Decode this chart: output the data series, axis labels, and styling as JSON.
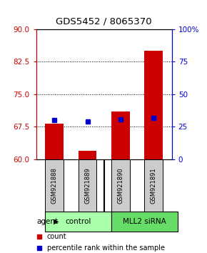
{
  "title": "GDS5452 / 8065370",
  "categories": [
    "GSM921888",
    "GSM921889",
    "GSM921890",
    "GSM921891"
  ],
  "bar_values": [
    68.2,
    62.0,
    71.0,
    85.0
  ],
  "bar_base": 60,
  "blue_values": [
    69.0,
    68.8,
    69.2,
    69.5
  ],
  "ylim": [
    60,
    90
  ],
  "yticks_left": [
    60,
    67.5,
    75,
    82.5,
    90
  ],
  "yticks_right": [
    0,
    25,
    50,
    75,
    100
  ],
  "bar_color": "#cc0000",
  "blue_color": "#0000cc",
  "hlines": [
    67.5,
    75,
    82.5
  ],
  "group_labels": [
    "control",
    "MLL2 siRNA"
  ],
  "group_colors": [
    "#aaffaa",
    "#66dd66"
  ],
  "group_ranges": [
    [
      0,
      2
    ],
    [
      2,
      4
    ]
  ],
  "agent_label": "agent",
  "legend_count": "count",
  "legend_pct": "percentile rank within the sample",
  "bar_width": 0.55
}
